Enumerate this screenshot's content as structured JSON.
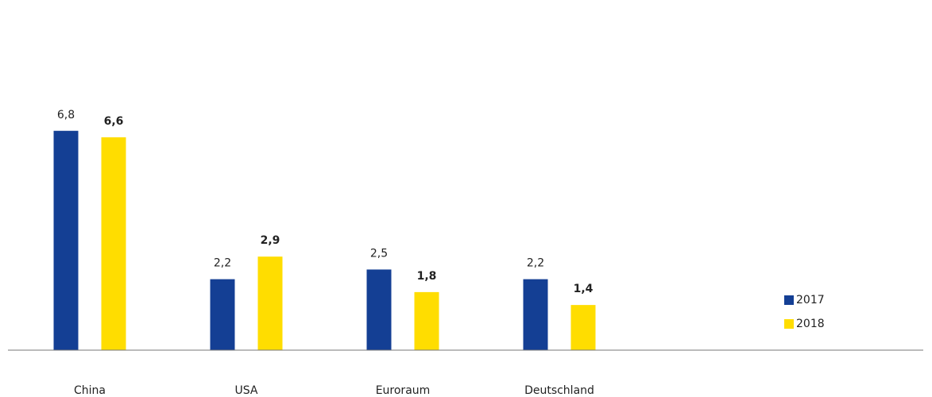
{
  "chart_data": {
    "type": "bar",
    "categories": [
      "China",
      "USA",
      "Euroraum",
      "Deutschland"
    ],
    "series": [
      {
        "name": "2017",
        "color": "#143f94",
        "values": [
          6.8,
          2.2,
          2.5,
          2.2
        ],
        "value_labels": [
          "6,8",
          "2,2",
          "2,5",
          "2,2"
        ],
        "bold": false
      },
      {
        "name": "2018",
        "color": "#ffdd00",
        "values": [
          6.6,
          2.9,
          1.8,
          1.4
        ],
        "value_labels": [
          "6,6",
          "2,9",
          "1,8",
          "1,4"
        ],
        "bold": true
      }
    ],
    "ylim": [
      0,
      8
    ],
    "legend": "right"
  }
}
